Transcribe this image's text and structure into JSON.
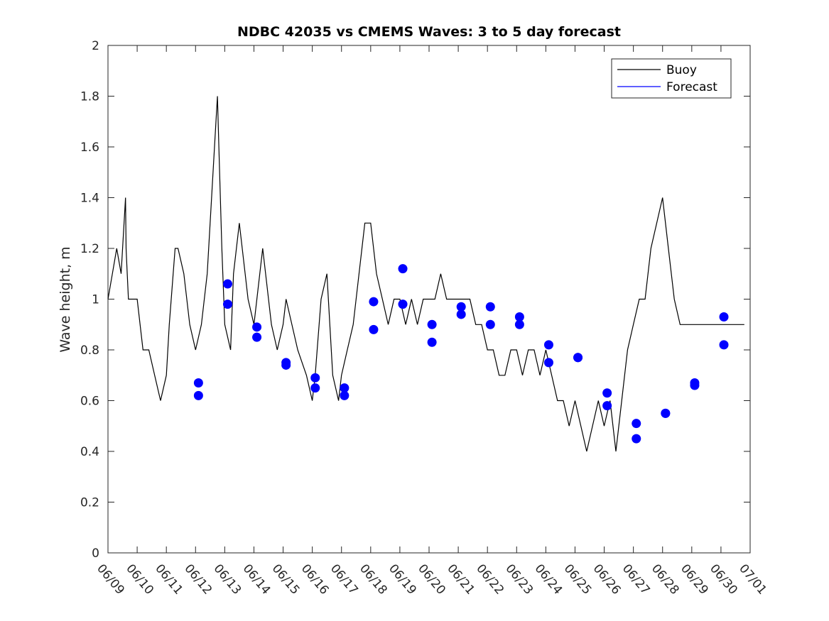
{
  "chart_data": {
    "type": "line",
    "title": "NDBC 42035 vs CMEMS Waves: 3 to 5 day forecast",
    "xlabel": "",
    "ylabel": "Wave height, m",
    "xlim": [
      "06/09",
      "07/01"
    ],
    "ylim": [
      0,
      2
    ],
    "x_ticks": [
      "06/09",
      "06/10",
      "06/11",
      "06/12",
      "06/13",
      "06/14",
      "06/15",
      "06/16",
      "06/17",
      "06/18",
      "06/19",
      "06/20",
      "06/21",
      "06/22",
      "06/23",
      "06/24",
      "06/25",
      "06/26",
      "06/27",
      "06/28",
      "06/29",
      "06/30",
      "07/01"
    ],
    "y_ticks": [
      "0",
      "0.2",
      "0.4",
      "0.6",
      "0.8",
      "1",
      "1.2",
      "1.4",
      "1.6",
      "1.8",
      "2"
    ],
    "grid": false,
    "legend": {
      "position": "top-right",
      "entries": [
        "Buoy",
        "Forecast"
      ]
    },
    "colors": {
      "buoy": "#000000",
      "forecast": "#0000ff"
    },
    "series": [
      {
        "name": "Buoy",
        "x_day_offsets_from_06_09": [
          0.0,
          0.15,
          0.3,
          0.45,
          0.6,
          0.62,
          0.66,
          0.7,
          0.8,
          1.0,
          1.2,
          1.4,
          1.6,
          1.8,
          2.0,
          2.1,
          2.3,
          2.4,
          2.6,
          2.8,
          3.0,
          3.2,
          3.4,
          3.5,
          3.6,
          3.7,
          3.75,
          3.8,
          3.9,
          4.0,
          4.2,
          4.3,
          4.5,
          4.7,
          4.8,
          5.0,
          5.1,
          5.3,
          5.4,
          5.6,
          5.8,
          6.0,
          6.1,
          6.3,
          6.5,
          6.8,
          7.0,
          7.1,
          7.3,
          7.5,
          7.7,
          7.9,
          8.0,
          8.2,
          8.4,
          8.6,
          8.8,
          9.0,
          9.2,
          9.4,
          9.6,
          9.8,
          10.0,
          10.2,
          10.4,
          10.6,
          10.8,
          11.0,
          11.2,
          11.4,
          11.6,
          11.8,
          12.0,
          12.2,
          12.4,
          12.6,
          12.8,
          13.0,
          13.2,
          13.4,
          13.6,
          13.8,
          14.0,
          14.2,
          14.4,
          14.6,
          14.8,
          15.0,
          15.2,
          15.4,
          15.6,
          15.8,
          16.0,
          16.2,
          16.4,
          16.6,
          16.8,
          17.0,
          17.2,
          17.4,
          17.6,
          17.8,
          18.0,
          18.2,
          18.4,
          18.6,
          18.8,
          19.0,
          19.2,
          19.4,
          19.6,
          19.8,
          20.0,
          20.2,
          20.4,
          20.5,
          20.6,
          20.7,
          20.8,
          21.0,
          21.2,
          21.4,
          21.6,
          21.8,
          22.0
        ],
        "values": [
          1.0,
          1.1,
          1.2,
          1.1,
          1.4,
          1.2,
          1.1,
          1.0,
          1.0,
          1.0,
          0.8,
          0.8,
          0.7,
          0.6,
          0.7,
          0.9,
          1.2,
          1.2,
          1.1,
          0.9,
          0.8,
          0.9,
          1.1,
          1.3,
          1.5,
          1.7,
          1.8,
          1.6,
          1.2,
          0.9,
          0.8,
          1.1,
          1.3,
          1.1,
          1.0,
          0.9,
          1.0,
          1.2,
          1.1,
          0.9,
          0.8,
          0.9,
          1.0,
          0.9,
          0.8,
          0.7,
          0.6,
          0.7,
          1.0,
          1.1,
          0.7,
          0.6,
          0.7,
          0.8,
          0.9,
          1.1,
          1.3,
          1.3,
          1.1,
          1.0,
          0.9,
          1.0,
          1.0,
          0.9,
          1.0,
          0.9,
          1.0,
          1.0,
          1.0,
          1.1,
          1.0,
          1.0,
          1.0,
          1.0,
          1.0,
          0.9,
          0.9,
          0.8,
          0.8,
          0.7,
          0.7,
          0.8,
          0.8,
          0.7,
          0.8,
          0.8,
          0.7,
          0.8,
          0.7,
          0.6,
          0.6,
          0.5,
          0.6,
          0.5,
          0.4,
          0.5,
          0.6,
          0.5,
          0.6,
          0.4,
          0.6,
          0.8,
          0.9,
          1.0,
          1.0,
          1.2,
          1.3,
          1.4,
          1.2,
          1.0,
          0.9,
          0.9,
          0.9,
          0.9,
          0.9,
          0.9,
          0.9,
          0.9,
          0.9,
          0.9,
          0.9,
          0.9,
          0.9,
          0.9
        ]
      }
    ],
    "forecast_points": {
      "x_day_offsets_from_06_09": [
        3.1,
        3.1,
        4.1,
        4.1,
        5.1,
        5.1,
        6.1,
        6.1,
        7.1,
        7.1,
        8.1,
        8.1,
        9.1,
        9.1,
        10.1,
        10.1,
        11.1,
        11.1,
        12.1,
        12.1,
        13.1,
        13.1,
        14.1,
        14.1,
        15.1,
        15.1,
        16.1,
        16.1,
        17.1,
        17.1,
        18.1,
        18.1,
        19.1,
        19.1,
        20.1,
        20.1,
        21.1,
        21.1
      ],
      "values": [
        0.67,
        0.62,
        1.06,
        0.98,
        0.89,
        0.85,
        0.75,
        0.74,
        0.69,
        0.65,
        0.65,
        0.62,
        0.99,
        0.88,
        1.12,
        0.98,
        0.9,
        0.83,
        0.97,
        0.94,
        0.97,
        0.9,
        0.93,
        0.9,
        0.82,
        0.75,
        0.77,
        0.77,
        0.63,
        0.58,
        0.51,
        0.45,
        0.55,
        0.55,
        0.67,
        0.66,
        0.93,
        0.82
      ]
    }
  }
}
